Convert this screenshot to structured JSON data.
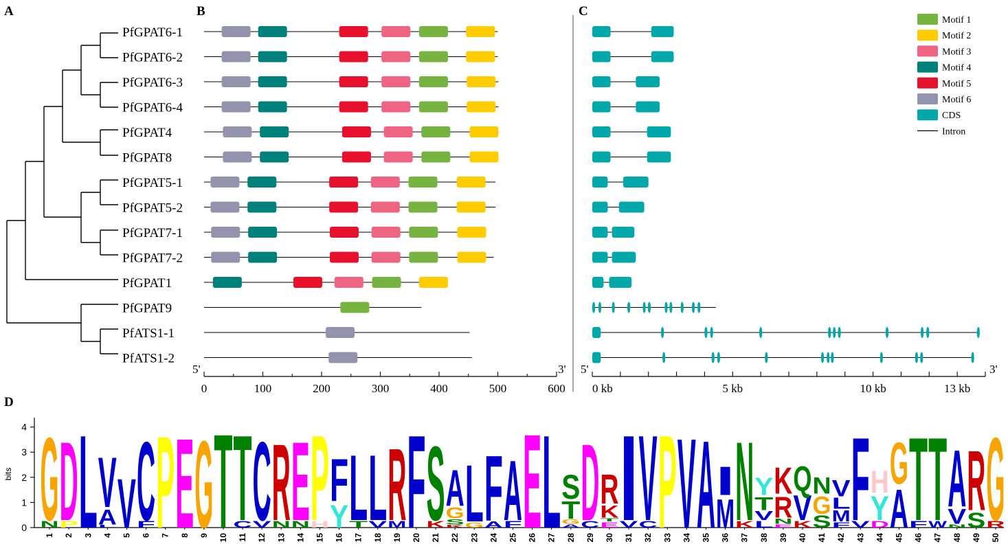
{
  "panel_labels": {
    "a": "A",
    "b": "B",
    "c": "C",
    "d": "D"
  },
  "genes": [
    "PfGPAT6-1",
    "PfGPAT6-2",
    "PfGPAT6-3",
    "PfGPAT6-4",
    "PfGPAT4",
    "PfGPAT8",
    "PfGPAT5-1",
    "PfGPAT5-2",
    "PfGPAT7-1",
    "PfGPAT7-2",
    "PfGPAT1",
    "PfGPAT9",
    "PfATS1-1",
    "PfATS1-2"
  ],
  "legend": [
    {
      "label": "Motif 1",
      "color": "#77b340",
      "kind": "box"
    },
    {
      "label": "Motif 2",
      "color": "#ffcc00",
      "kind": "box"
    },
    {
      "label": "Motif 3",
      "color": "#ef6383",
      "kind": "box"
    },
    {
      "label": "Motif 4",
      "color": "#00807a",
      "kind": "box"
    },
    {
      "label": "Motif 5",
      "color": "#e8112d",
      "kind": "box"
    },
    {
      "label": "Motif 6",
      "color": "#9393ad",
      "kind": "box"
    },
    {
      "label": "CDS",
      "color": "#02a7aa",
      "kind": "box"
    },
    {
      "label": "Intron",
      "color": "#000000",
      "kind": "line"
    }
  ],
  "motif_colors": {
    "1": "#77b340",
    "2": "#ffcc00",
    "3": "#ef6383",
    "4": "#00807a",
    "5": "#e8112d",
    "6": "#9393ad"
  },
  "protein_axis": {
    "end5": "5'",
    "end3": "3'",
    "ticks": [
      "0",
      "100",
      "200",
      "300",
      "400",
      "500",
      "600"
    ],
    "max": 600
  },
  "proteins": [
    {
      "len": 500,
      "motifs": [
        [
          6,
          30
        ],
        [
          4,
          92
        ],
        [
          5,
          230
        ],
        [
          3,
          302
        ],
        [
          1,
          366
        ],
        [
          2,
          446
        ]
      ]
    },
    {
      "len": 500,
      "motifs": [
        [
          6,
          30
        ],
        [
          4,
          92
        ],
        [
          5,
          230
        ],
        [
          3,
          302
        ],
        [
          1,
          366
        ],
        [
          2,
          446
        ]
      ]
    },
    {
      "len": 501,
      "motifs": [
        [
          6,
          30
        ],
        [
          4,
          92
        ],
        [
          5,
          230
        ],
        [
          3,
          302
        ],
        [
          1,
          366
        ],
        [
          2,
          447
        ]
      ]
    },
    {
      "len": 501,
      "motifs": [
        [
          6,
          30
        ],
        [
          4,
          92
        ],
        [
          5,
          230
        ],
        [
          3,
          302
        ],
        [
          1,
          366
        ],
        [
          2,
          447
        ]
      ]
    },
    {
      "len": 500,
      "motifs": [
        [
          6,
          32
        ],
        [
          4,
          95
        ],
        [
          5,
          235
        ],
        [
          3,
          306
        ],
        [
          1,
          370
        ],
        [
          2,
          452
        ]
      ]
    },
    {
      "len": 500,
      "motifs": [
        [
          6,
          32
        ],
        [
          4,
          95
        ],
        [
          5,
          235
        ],
        [
          3,
          306
        ],
        [
          1,
          370
        ],
        [
          2,
          452
        ]
      ]
    },
    {
      "len": 496,
      "motifs": [
        [
          6,
          11
        ],
        [
          4,
          74
        ],
        [
          5,
          213
        ],
        [
          3,
          284
        ],
        [
          1,
          348
        ],
        [
          2,
          430
        ]
      ]
    },
    {
      "len": 496,
      "motifs": [
        [
          6,
          11
        ],
        [
          4,
          74
        ],
        [
          5,
          213
        ],
        [
          3,
          284
        ],
        [
          1,
          348
        ],
        [
          2,
          430
        ]
      ]
    },
    {
      "len": 473,
      "motifs": [
        [
          6,
          12
        ],
        [
          4,
          75
        ],
        [
          5,
          214
        ],
        [
          3,
          285
        ],
        [
          1,
          349
        ],
        [
          2,
          431
        ]
      ]
    },
    {
      "len": 493,
      "motifs": [
        [
          6,
          12
        ],
        [
          4,
          75
        ],
        [
          5,
          214
        ],
        [
          3,
          285
        ],
        [
          1,
          349
        ],
        [
          2,
          431
        ]
      ]
    },
    {
      "len": 414,
      "motifs": [
        [
          4,
          15
        ],
        [
          5,
          152
        ],
        [
          3,
          222
        ],
        [
          1,
          286
        ],
        [
          2,
          366
        ]
      ]
    },
    {
      "len": 370,
      "motifs": [
        [
          1,
          232
        ]
      ]
    },
    {
      "len": 452,
      "motifs": [
        [
          6,
          207
        ]
      ]
    },
    {
      "len": 456,
      "motifs": [
        [
          6,
          212
        ]
      ]
    }
  ],
  "gene_axis": {
    "end5": "5'",
    "end3": "3'",
    "ticks": [
      "0 kb",
      "5 kb",
      "10 kb",
      "13 kb"
    ],
    "tick_kb": [
      0,
      5,
      10,
      13
    ],
    "max_kb": 14
  },
  "genes_struct": [
    {
      "len": 2.9,
      "cds": [
        [
          0,
          0.65
        ],
        [
          2.1,
          2.9
        ]
      ]
    },
    {
      "len": 2.9,
      "cds": [
        [
          0,
          0.65
        ],
        [
          2.1,
          2.9
        ]
      ]
    },
    {
      "len": 2.4,
      "cds": [
        [
          0,
          0.65
        ],
        [
          1.55,
          2.4
        ]
      ]
    },
    {
      "len": 2.4,
      "cds": [
        [
          0,
          0.65
        ],
        [
          1.55,
          2.4
        ]
      ]
    },
    {
      "len": 2.8,
      "cds": [
        [
          0,
          0.65
        ],
        [
          1.95,
          2.8
        ]
      ]
    },
    {
      "len": 2.8,
      "cds": [
        [
          0,
          0.65
        ],
        [
          1.95,
          2.8
        ]
      ]
    },
    {
      "len": 2.0,
      "cds": [
        [
          0,
          0.55
        ],
        [
          1.1,
          2.0
        ]
      ]
    },
    {
      "len": 1.85,
      "cds": [
        [
          0,
          0.55
        ],
        [
          0.95,
          1.85
        ]
      ]
    },
    {
      "len": 1.5,
      "cds": [
        [
          0,
          0.55
        ],
        [
          0.7,
          1.5
        ]
      ]
    },
    {
      "len": 1.55,
      "cds": [
        [
          0,
          0.55
        ],
        [
          0.7,
          1.55
        ]
      ]
    },
    {
      "len": 1.4,
      "cds": [
        [
          0,
          0.4
        ],
        [
          0.6,
          1.4
        ]
      ]
    },
    {
      "len": 4.4,
      "cds": [
        [
          0,
          0.1
        ],
        [
          0.22,
          0.3
        ],
        [
          0.7,
          0.8
        ],
        [
          1.25,
          1.35
        ],
        [
          1.8,
          1.9
        ],
        [
          1.98,
          2.08
        ],
        [
          2.58,
          2.68
        ],
        [
          2.75,
          2.85
        ],
        [
          3.15,
          3.25
        ],
        [
          3.55,
          3.65
        ],
        [
          3.75,
          3.85
        ]
      ]
    },
    {
      "len": 13.8,
      "cds": [
        [
          0,
          0.3
        ],
        [
          2.45,
          2.55
        ],
        [
          4.0,
          4.1
        ],
        [
          4.2,
          4.3
        ],
        [
          5.95,
          6.05
        ],
        [
          8.4,
          8.5
        ],
        [
          8.57,
          8.67
        ],
        [
          8.75,
          8.85
        ],
        [
          10.45,
          10.55
        ],
        [
          11.7,
          11.8
        ],
        [
          11.9,
          12.0
        ],
        [
          13.7,
          13.8
        ]
      ]
    },
    {
      "len": 13.6,
      "cds": [
        [
          0,
          0.3
        ],
        [
          2.5,
          2.6
        ],
        [
          4.25,
          4.35
        ],
        [
          4.45,
          4.55
        ],
        [
          6.15,
          6.25
        ],
        [
          8.15,
          8.25
        ],
        [
          8.35,
          8.45
        ],
        [
          8.5,
          8.6
        ],
        [
          10.25,
          10.35
        ],
        [
          11.5,
          11.6
        ],
        [
          11.68,
          11.78
        ],
        [
          13.5,
          13.6
        ]
      ]
    }
  ],
  "logo": {
    "ylabel": "bits",
    "yticks": [
      "0",
      "1",
      "2",
      "3",
      "4"
    ],
    "ymax": 4.3,
    "aa_colors": {
      "G": "#f7a400",
      "D": "#ff00ff",
      "E": "#ff00ff",
      "L": "#0000cc",
      "V": "#0000cc",
      "A": "#0000cc",
      "I": "#0000cc",
      "M": "#0000cc",
      "F": "#0000cc",
      "W": "#0000cc",
      "C": "#0000cc",
      "P": "#ffff00",
      "T": "#008000",
      "S": "#008000",
      "N": "#008000",
      "Q": "#008000",
      "R": "#cc0000",
      "K": "#cc0000",
      "H": "#ffc8c8",
      "Y": "#33e6d6"
    },
    "columns": [
      {
        "pos": "1",
        "letters": [
          [
            "N",
            0.3
          ],
          [
            "G",
            3.8
          ]
        ]
      },
      {
        "pos": "2",
        "letters": [
          [
            "P",
            0.3
          ],
          [
            "D",
            3.6
          ]
        ]
      },
      {
        "pos": "3",
        "letters": [
          [
            "L",
            4.25
          ]
        ]
      },
      {
        "pos": "4",
        "letters": [
          [
            "L",
            0.12
          ],
          [
            "A",
            0.7
          ],
          [
            "V",
            2.3
          ]
        ]
      },
      {
        "pos": "5",
        "letters": [
          [
            "V",
            2.25
          ]
        ]
      },
      {
        "pos": "6",
        "letters": [
          [
            "F",
            0.3
          ],
          [
            "C",
            3.6
          ]
        ]
      },
      {
        "pos": "7",
        "letters": [
          [
            "P",
            4.2
          ]
        ]
      },
      {
        "pos": "8",
        "letters": [
          [
            "E",
            4.1
          ]
        ]
      },
      {
        "pos": "9",
        "letters": [
          [
            "G",
            4.0
          ]
        ]
      },
      {
        "pos": "10",
        "letters": [
          [
            "T",
            4.3
          ]
        ]
      },
      {
        "pos": "11",
        "letters": [
          [
            "C",
            0.3
          ],
          [
            "T",
            3.9
          ]
        ]
      },
      {
        "pos": "12",
        "letters": [
          [
            "V",
            0.3
          ],
          [
            "C",
            3.6
          ]
        ]
      },
      {
        "pos": "13",
        "letters": [
          [
            "N",
            0.3
          ],
          [
            "R",
            3.5
          ]
        ]
      },
      {
        "pos": "14",
        "letters": [
          [
            "N",
            0.3
          ],
          [
            "E",
            3.6
          ]
        ]
      },
      {
        "pos": "15",
        "letters": [
          [
            "H",
            0.3
          ],
          [
            "P",
            3.9
          ]
        ]
      },
      {
        "pos": "16",
        "letters": [
          [
            "Y",
            1.05
          ],
          [
            "F",
            1.95
          ]
        ]
      },
      {
        "pos": "17",
        "letters": [
          [
            "T",
            0.3
          ],
          [
            "L",
            3.0
          ]
        ]
      },
      {
        "pos": "18",
        "letters": [
          [
            "V",
            0.3
          ],
          [
            "L",
            3.0
          ]
        ]
      },
      {
        "pos": "19",
        "letters": [
          [
            "M",
            0.3
          ],
          [
            "R",
            3.3
          ]
        ]
      },
      {
        "pos": "20",
        "letters": [
          [
            "F",
            4.25
          ]
        ]
      },
      {
        "pos": "21",
        "letters": [
          [
            "K",
            0.3
          ],
          [
            "S",
            3.4
          ]
        ]
      },
      {
        "pos": "22",
        "letters": [
          [
            "K",
            0.12
          ],
          [
            "S",
            0.25
          ],
          [
            "G",
            0.5
          ],
          [
            "A",
            1.65
          ]
        ]
      },
      {
        "pos": "23",
        "letters": [
          [
            "G",
            0.25
          ],
          [
            "L",
            2.6
          ]
        ]
      },
      {
        "pos": "24",
        "letters": [
          [
            "A",
            0.28
          ],
          [
            "F",
            3.0
          ]
        ]
      },
      {
        "pos": "25",
        "letters": [
          [
            "F",
            0.3
          ],
          [
            "A",
            2.75
          ]
        ]
      },
      {
        "pos": "26",
        "letters": [
          [
            "E",
            4.3
          ]
        ]
      },
      {
        "pos": "27",
        "letters": [
          [
            "L",
            4.25
          ]
        ]
      },
      {
        "pos": "28",
        "letters": [
          [
            "A",
            0.15
          ],
          [
            "G",
            0.2
          ],
          [
            "T",
            0.8
          ],
          [
            "S",
            1.1
          ]
        ]
      },
      {
        "pos": "29",
        "letters": [
          [
            "C",
            0.3
          ],
          [
            "D",
            3.5
          ]
        ]
      },
      {
        "pos": "30",
        "letters": [
          [
            "E",
            0.25
          ],
          [
            "T",
            0.15
          ],
          [
            "K",
            0.55
          ],
          [
            "R",
            1.35
          ]
        ]
      },
      {
        "pos": "31",
        "letters": [
          [
            "V",
            0.3
          ],
          [
            "I",
            3.9
          ]
        ]
      },
      {
        "pos": "32",
        "letters": [
          [
            "C",
            0.3
          ],
          [
            "V",
            3.9
          ]
        ]
      },
      {
        "pos": "33",
        "letters": [
          [
            "P",
            4.25
          ]
        ]
      },
      {
        "pos": "34",
        "letters": [
          [
            "V",
            4.1
          ]
        ]
      },
      {
        "pos": "35",
        "letters": [
          [
            "A",
            4.0
          ]
        ]
      },
      {
        "pos": "36",
        "letters": [
          [
            "M",
            1.3
          ],
          [
            "I",
            1.3
          ]
        ]
      },
      {
        "pos": "37",
        "letters": [
          [
            "K",
            0.3
          ],
          [
            "N",
            3.6
          ]
        ]
      },
      {
        "pos": "38",
        "letters": [
          [
            "L",
            0.3
          ],
          [
            "V",
            0.4
          ],
          [
            "T",
            0.6
          ],
          [
            "Y",
            0.8
          ]
        ]
      },
      {
        "pos": "39",
        "letters": [
          [
            "E",
            0.15
          ],
          [
            "N",
            0.25
          ],
          [
            "R",
            0.95
          ],
          [
            "K",
            1.2
          ]
        ]
      },
      {
        "pos": "40",
        "letters": [
          [
            "K",
            0.3
          ],
          [
            "V",
            1.15
          ],
          [
            "Q",
            1.15
          ]
        ]
      },
      {
        "pos": "41",
        "letters": [
          [
            "S",
            0.55
          ],
          [
            "G",
            0.8
          ],
          [
            "N",
            0.75
          ]
        ]
      },
      {
        "pos": "42",
        "letters": [
          [
            "F",
            0.25
          ],
          [
            "M",
            0.5
          ],
          [
            "L",
            0.5
          ],
          [
            "V",
            0.75
          ]
        ]
      },
      {
        "pos": "43",
        "letters": [
          [
            "V",
            0.3
          ],
          [
            "F",
            3.8
          ]
        ]
      },
      {
        "pos": "44",
        "letters": [
          [
            "D",
            0.3
          ],
          [
            "Y",
            1.1
          ],
          [
            "H",
            1.0
          ]
        ]
      },
      {
        "pos": "45",
        "letters": [
          [
            "A",
            1.75
          ],
          [
            "G",
            1.9
          ]
        ]
      },
      {
        "pos": "46",
        "letters": [
          [
            "F",
            0.3
          ],
          [
            "T",
            3.8
          ]
        ]
      },
      {
        "pos": "47",
        "letters": [
          [
            "W",
            0.3
          ],
          [
            "T",
            3.8
          ]
        ]
      },
      {
        "pos": "48",
        "letters": [
          [
            "N",
            0.15
          ],
          [
            "V",
            0.7
          ],
          [
            "A",
            2.6
          ]
        ]
      },
      {
        "pos": "49",
        "letters": [
          [
            "S",
            0.7
          ],
          [
            "R",
            2.75
          ]
        ]
      },
      {
        "pos": "50",
        "letters": [
          [
            "R",
            0.3
          ],
          [
            "G",
            3.8
          ]
        ]
      }
    ]
  }
}
